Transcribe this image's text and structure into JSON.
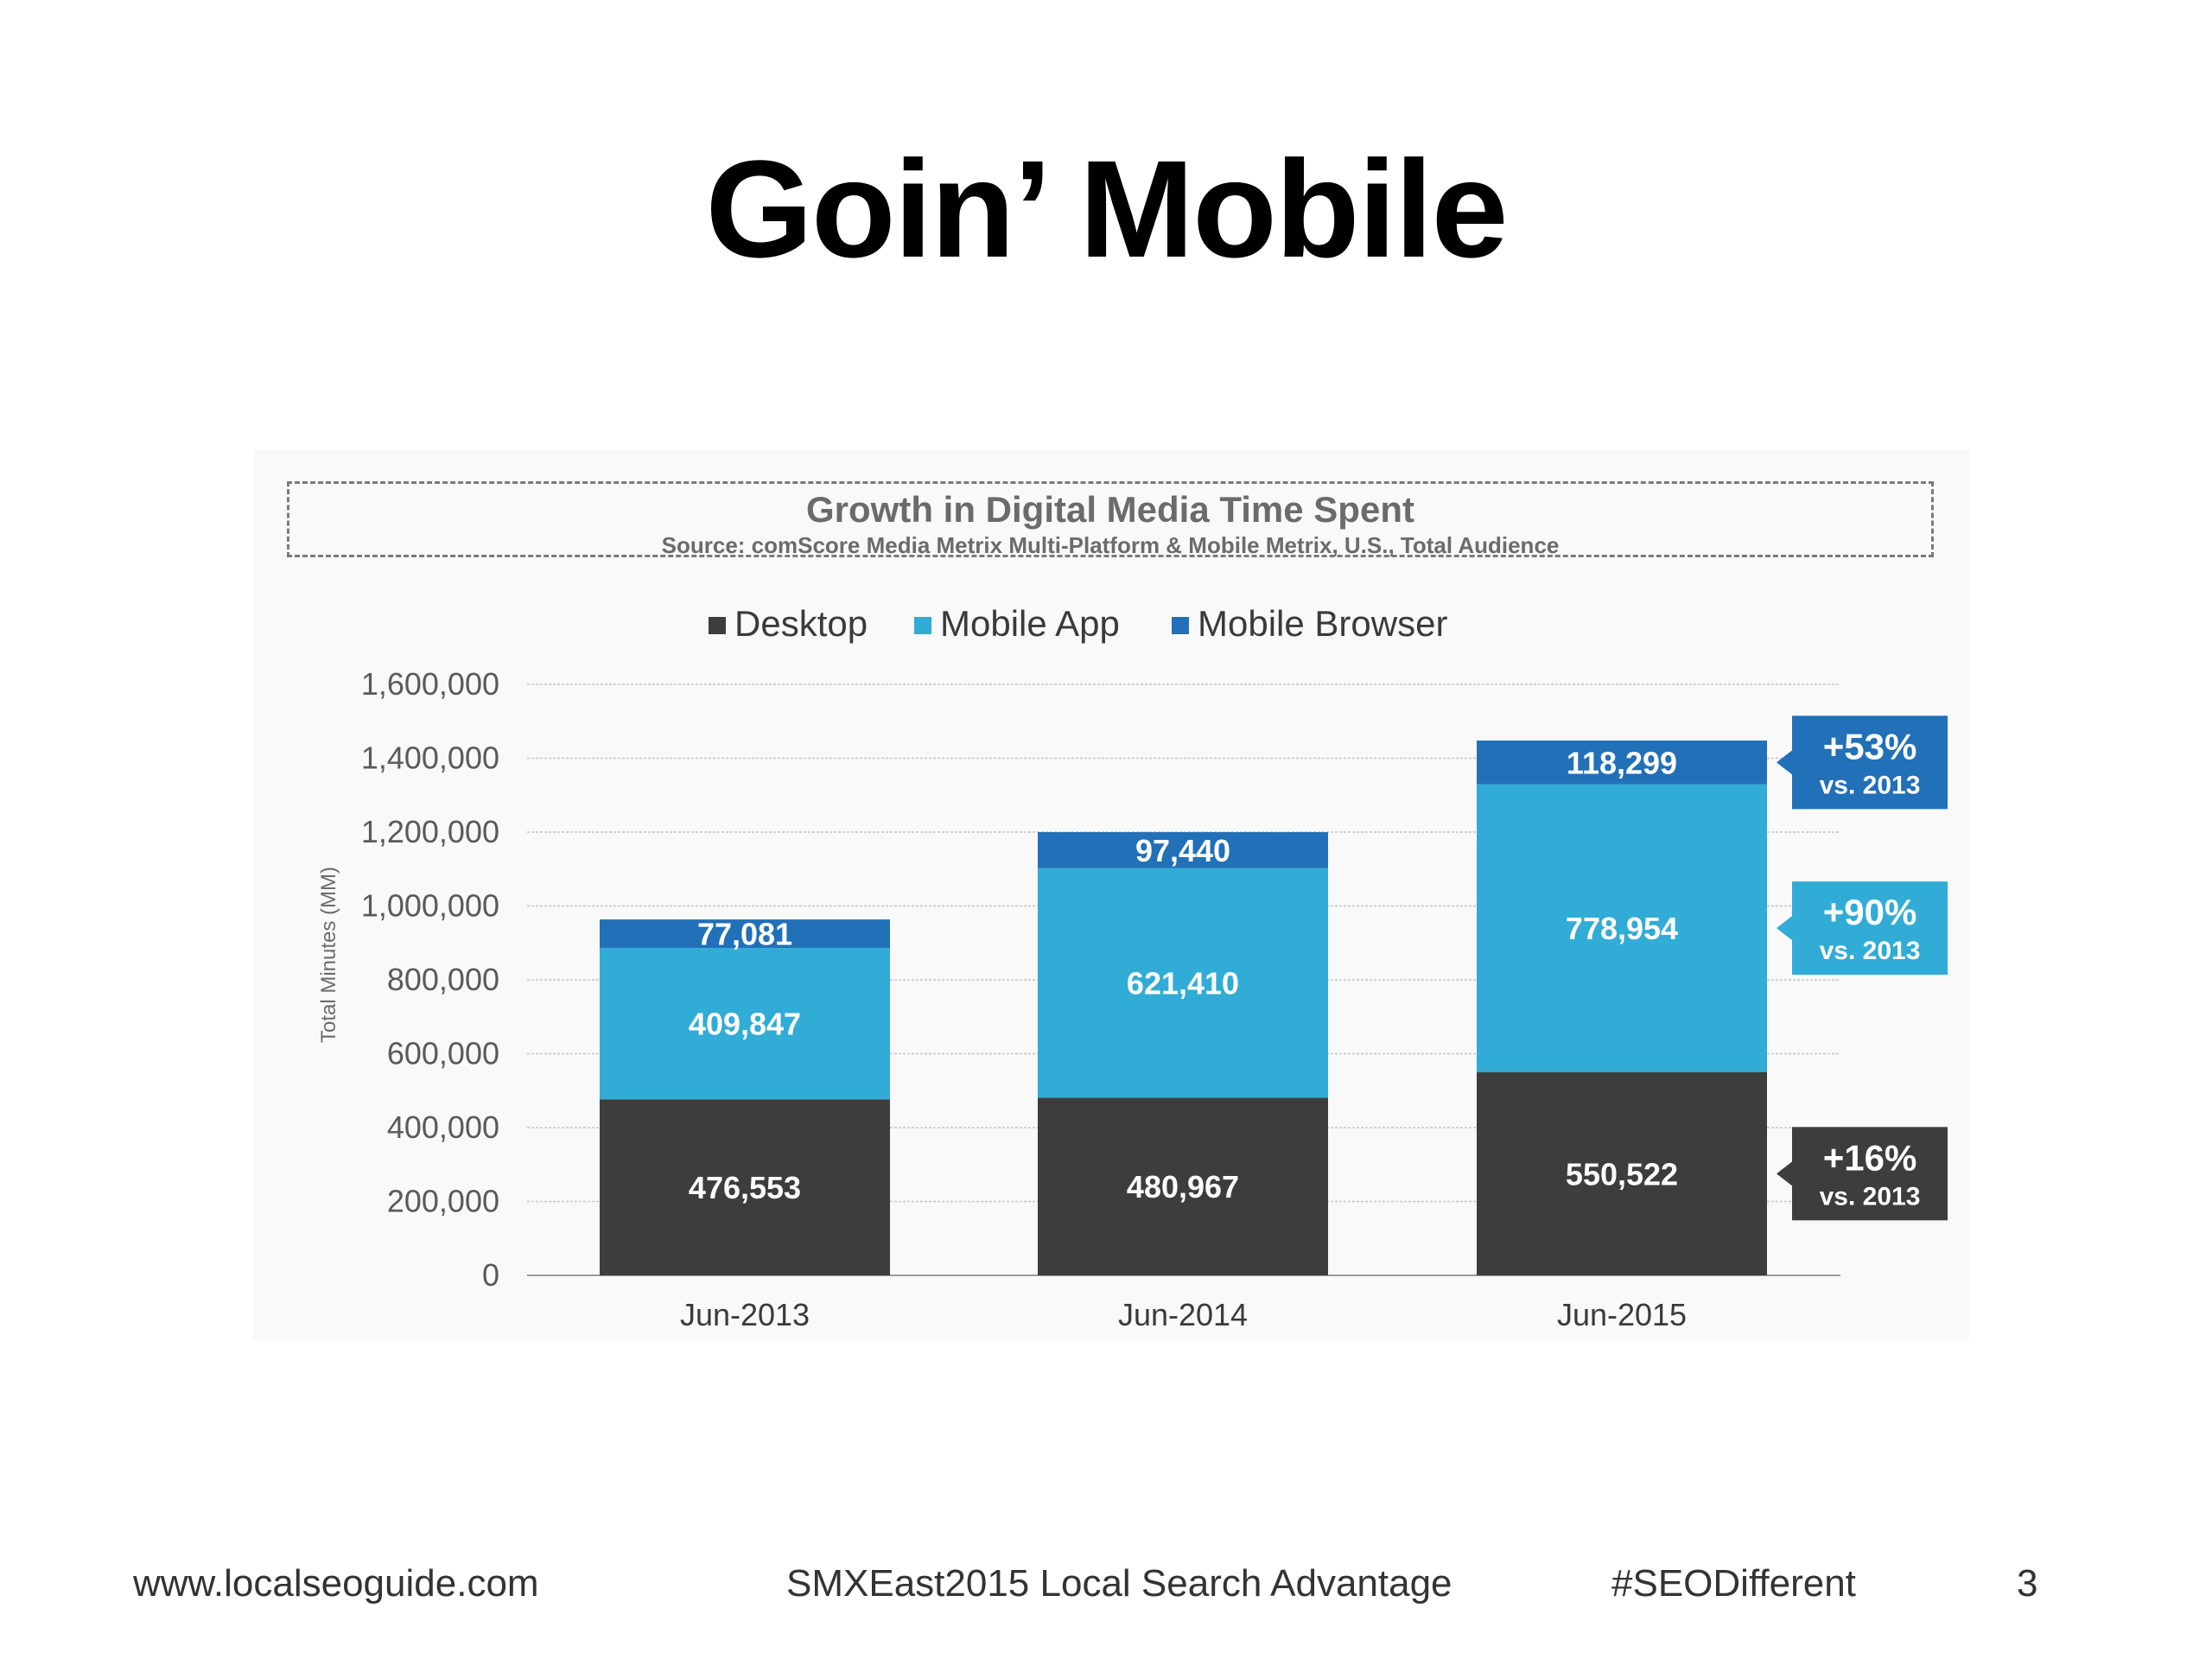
{
  "slide": {
    "title": "Goin’ Mobile",
    "footer": {
      "url": "www.localseoguide.com",
      "event": "SMXEast2015 Local Search Advantage",
      "hashtag": "#SEODifferent",
      "page_number": "3"
    }
  },
  "chart_data": {
    "type": "bar",
    "stacked": true,
    "title": "Growth in Digital Media Time Spent",
    "subtitle": "Source: comScore Media Metrix Multi-Platform & Mobile Metrix, U.S., Total Audience",
    "ylabel": "Total Minutes (MM)",
    "xlabel": "",
    "ylim": [
      0,
      1600000
    ],
    "yticks": [
      0,
      200000,
      400000,
      600000,
      800000,
      1000000,
      1200000,
      1400000,
      1600000
    ],
    "ytick_labels": [
      "0",
      "200,000",
      "400,000",
      "600,000",
      "800,000",
      "1,000,000",
      "1,200,000",
      "1,400,000",
      "1,600,000"
    ],
    "categories": [
      "Jun-2013",
      "Jun-2014",
      "Jun-2015"
    ],
    "series": [
      {
        "name": "Desktop",
        "color": "#3d3d3d",
        "values": [
          476553,
          480967,
          550522
        ],
        "labels": [
          "476,553",
          "480,967",
          "550,522"
        ]
      },
      {
        "name": "Mobile App",
        "color": "#31acd6",
        "values": [
          409847,
          621410,
          778954
        ],
        "labels": [
          "409,847",
          "621,410",
          "778,954"
        ]
      },
      {
        "name": "Mobile Browser",
        "color": "#2170b8",
        "values": [
          77081,
          97440,
          118299
        ],
        "labels": [
          "77,081",
          "97,440",
          "118,299"
        ]
      }
    ],
    "legend_position": "top-center",
    "grid": true,
    "callouts": [
      {
        "series": "Mobile Browser",
        "text": "+53%",
        "subtext": "vs. 2013",
        "color": "#2170b8"
      },
      {
        "series": "Mobile App",
        "text": "+90%",
        "subtext": "vs. 2013",
        "color": "#31acd6"
      },
      {
        "series": "Desktop",
        "text": "+16%",
        "subtext": "vs. 2013",
        "color": "#3d3d3d"
      }
    ]
  }
}
